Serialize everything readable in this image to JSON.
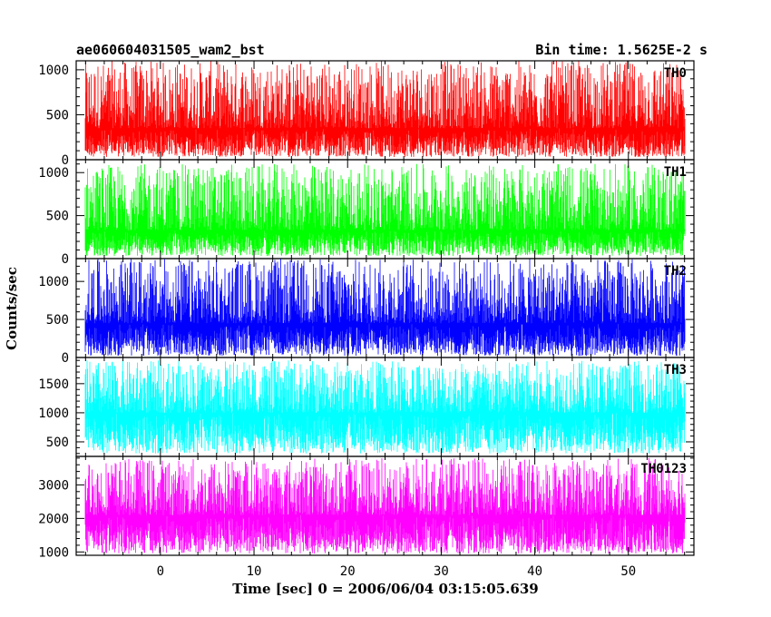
{
  "chart_data": {
    "type": "line",
    "title_left": "ae060604031505_wam2_bst",
    "title_right": "Bin time: 1.5625E-2 s",
    "xlabel": "Time [sec] 0 = 2006/06/04 03:15:05.639",
    "ylabel": "Counts/sec",
    "xlim": [
      -9,
      57
    ],
    "data_x_range": [
      -8,
      56
    ],
    "x_ticks": [
      0,
      10,
      20,
      30,
      40,
      50
    ],
    "x_tick_labels": [
      "0",
      "10",
      "20",
      "30",
      "40",
      "50"
    ],
    "panels": [
      {
        "name": "TH0",
        "color": "#ff0000",
        "ylim": [
          0,
          1100
        ],
        "y_ticks": [
          0,
          500,
          1000
        ],
        "y_tick_labels": [
          "0",
          "500",
          "1000"
        ],
        "approx_mean": 350,
        "approx_noise_range": [
          30,
          1100
        ]
      },
      {
        "name": "TH1",
        "color": "#00ff00",
        "ylim": [
          0,
          1150
        ],
        "y_ticks": [
          0,
          500,
          1000
        ],
        "y_tick_labels": [
          "0",
          "500",
          "1000"
        ],
        "approx_mean": 330,
        "approx_noise_range": [
          30,
          1100
        ]
      },
      {
        "name": "TH2",
        "color": "#0000ff",
        "ylim": [
          0,
          1300
        ],
        "y_ticks": [
          0,
          500,
          1000
        ],
        "y_tick_labels": [
          "0",
          "500",
          "1000"
        ],
        "approx_mean": 450,
        "approx_noise_range": [
          20,
          1300
        ]
      },
      {
        "name": "TH3",
        "color": "#00ffff",
        "ylim": [
          250,
          1950
        ],
        "y_ticks": [
          500,
          1000,
          1500
        ],
        "y_tick_labels": [
          "500",
          "1000",
          "1500"
        ],
        "approx_mean": 1000,
        "approx_noise_range": [
          300,
          1900
        ]
      },
      {
        "name": "TH0123",
        "color": "#ff00ff",
        "ylim": [
          900,
          3850
        ],
        "y_ticks": [
          1000,
          2000,
          3000
        ],
        "y_tick_labels": [
          "1000",
          "2000",
          "3000"
        ],
        "approx_mean": 2100,
        "approx_noise_range": [
          950,
          3800
        ]
      }
    ]
  }
}
